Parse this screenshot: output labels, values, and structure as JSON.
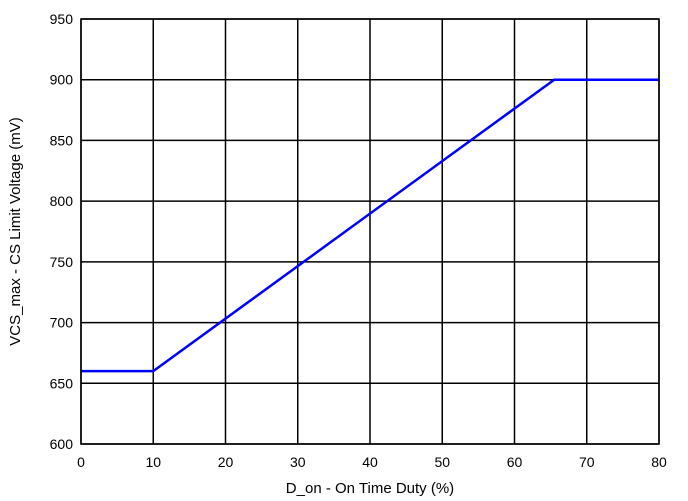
{
  "chart_data": {
    "type": "line",
    "title": "",
    "xlabel": "D_on - On Time Duty (%)",
    "ylabel": "VCS_max - CS Limit Voltage (mV)",
    "xlim": [
      0,
      80
    ],
    "ylim": [
      600,
      950
    ],
    "x_ticks": [
      0,
      10,
      20,
      30,
      40,
      50,
      60,
      70,
      80
    ],
    "y_ticks": [
      600,
      650,
      700,
      750,
      800,
      850,
      900,
      950
    ],
    "grid": true,
    "series": [
      {
        "color": "#0000ff",
        "x": [
          0,
          10,
          65.5,
          80
        ],
        "y": [
          660,
          660,
          900,
          900
        ]
      }
    ]
  }
}
